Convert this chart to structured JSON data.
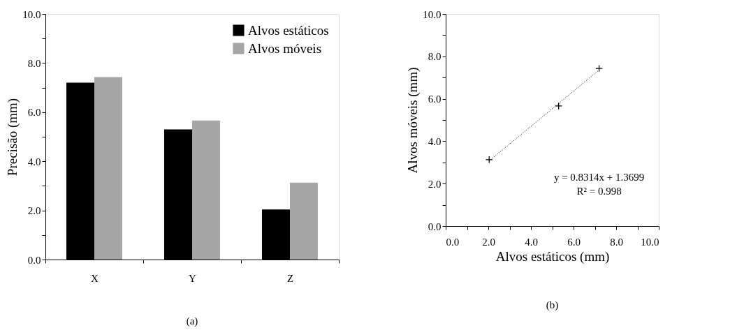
{
  "chart_data": [
    {
      "type": "bar",
      "ylabel": "Precisão (mm)",
      "categories": [
        "X",
        "Y",
        "Z"
      ],
      "series": [
        {
          "name": "Alvos estáticos",
          "color": "#000000",
          "values": [
            7.2,
            5.3,
            2.04
          ]
        },
        {
          "name": "Alvos móveis",
          "color": "#a6a6a6",
          "values": [
            7.43,
            5.66,
            3.13
          ]
        }
      ],
      "ylim": [
        0,
        10
      ],
      "yticks": [
        {
          "value": 0,
          "label": "0.0"
        },
        {
          "value": 1,
          "label": null
        },
        {
          "value": 2,
          "label": "2.0"
        },
        {
          "value": 3,
          "label": null
        },
        {
          "value": 4,
          "label": "4.0"
        },
        {
          "value": 5,
          "label": null
        },
        {
          "value": 6,
          "label": "6.0"
        },
        {
          "value": 7,
          "label": null
        },
        {
          "value": 8,
          "label": "8.0"
        },
        {
          "value": 9,
          "label": null
        },
        {
          "value": 10,
          "label": "10.0"
        }
      ],
      "legend": "top right",
      "annotations": [
        "(a)"
      ]
    },
    {
      "type": "scatter",
      "xlabel": "Alvos estáticos (mm)",
      "ylabel": "Alvos móveis (mm)",
      "series": [
        {
          "type": "scatter",
          "color": "#000000",
          "marker": "cross",
          "x": [
            2.04,
            5.3,
            7.2
          ],
          "values": [
            3.13,
            5.66,
            7.43
          ]
        },
        {
          "type": "line",
          "color": "#000000",
          "line_style": "dotted",
          "x": [
            2.04,
            7.2
          ],
          "values": [
            3.07,
            7.36
          ]
        }
      ],
      "xlim": [
        0,
        10
      ],
      "ylim": [
        0,
        10
      ],
      "xticks": [
        {
          "value": 0,
          "label": "0.0"
        },
        {
          "value": 1,
          "label": null
        },
        {
          "value": 2,
          "label": "2.0"
        },
        {
          "value": 3,
          "label": null
        },
        {
          "value": 4,
          "label": "4.0"
        },
        {
          "value": 5,
          "label": null
        },
        {
          "value": 6,
          "label": "6.0"
        },
        {
          "value": 7,
          "label": null
        },
        {
          "value": 8,
          "label": "8.0"
        },
        {
          "value": 9,
          "label": null
        },
        {
          "value": 10,
          "label": "10.0"
        }
      ],
      "yticks": [
        {
          "value": 0,
          "label": "0.0"
        },
        {
          "value": 1,
          "label": null
        },
        {
          "value": 2,
          "label": "2.0"
        },
        {
          "value": 3,
          "label": null
        },
        {
          "value": 4,
          "label": "4.0"
        },
        {
          "value": 5,
          "label": null
        },
        {
          "value": 6,
          "label": "6.0"
        },
        {
          "value": 7,
          "label": null
        },
        {
          "value": 8,
          "label": "8.0"
        },
        {
          "value": 9,
          "label": null
        },
        {
          "value": 10,
          "label": "10.0"
        }
      ],
      "annotations": [
        "y = 0.8314x + 1.3699",
        "R² = 0.998",
        "(b)"
      ]
    }
  ]
}
